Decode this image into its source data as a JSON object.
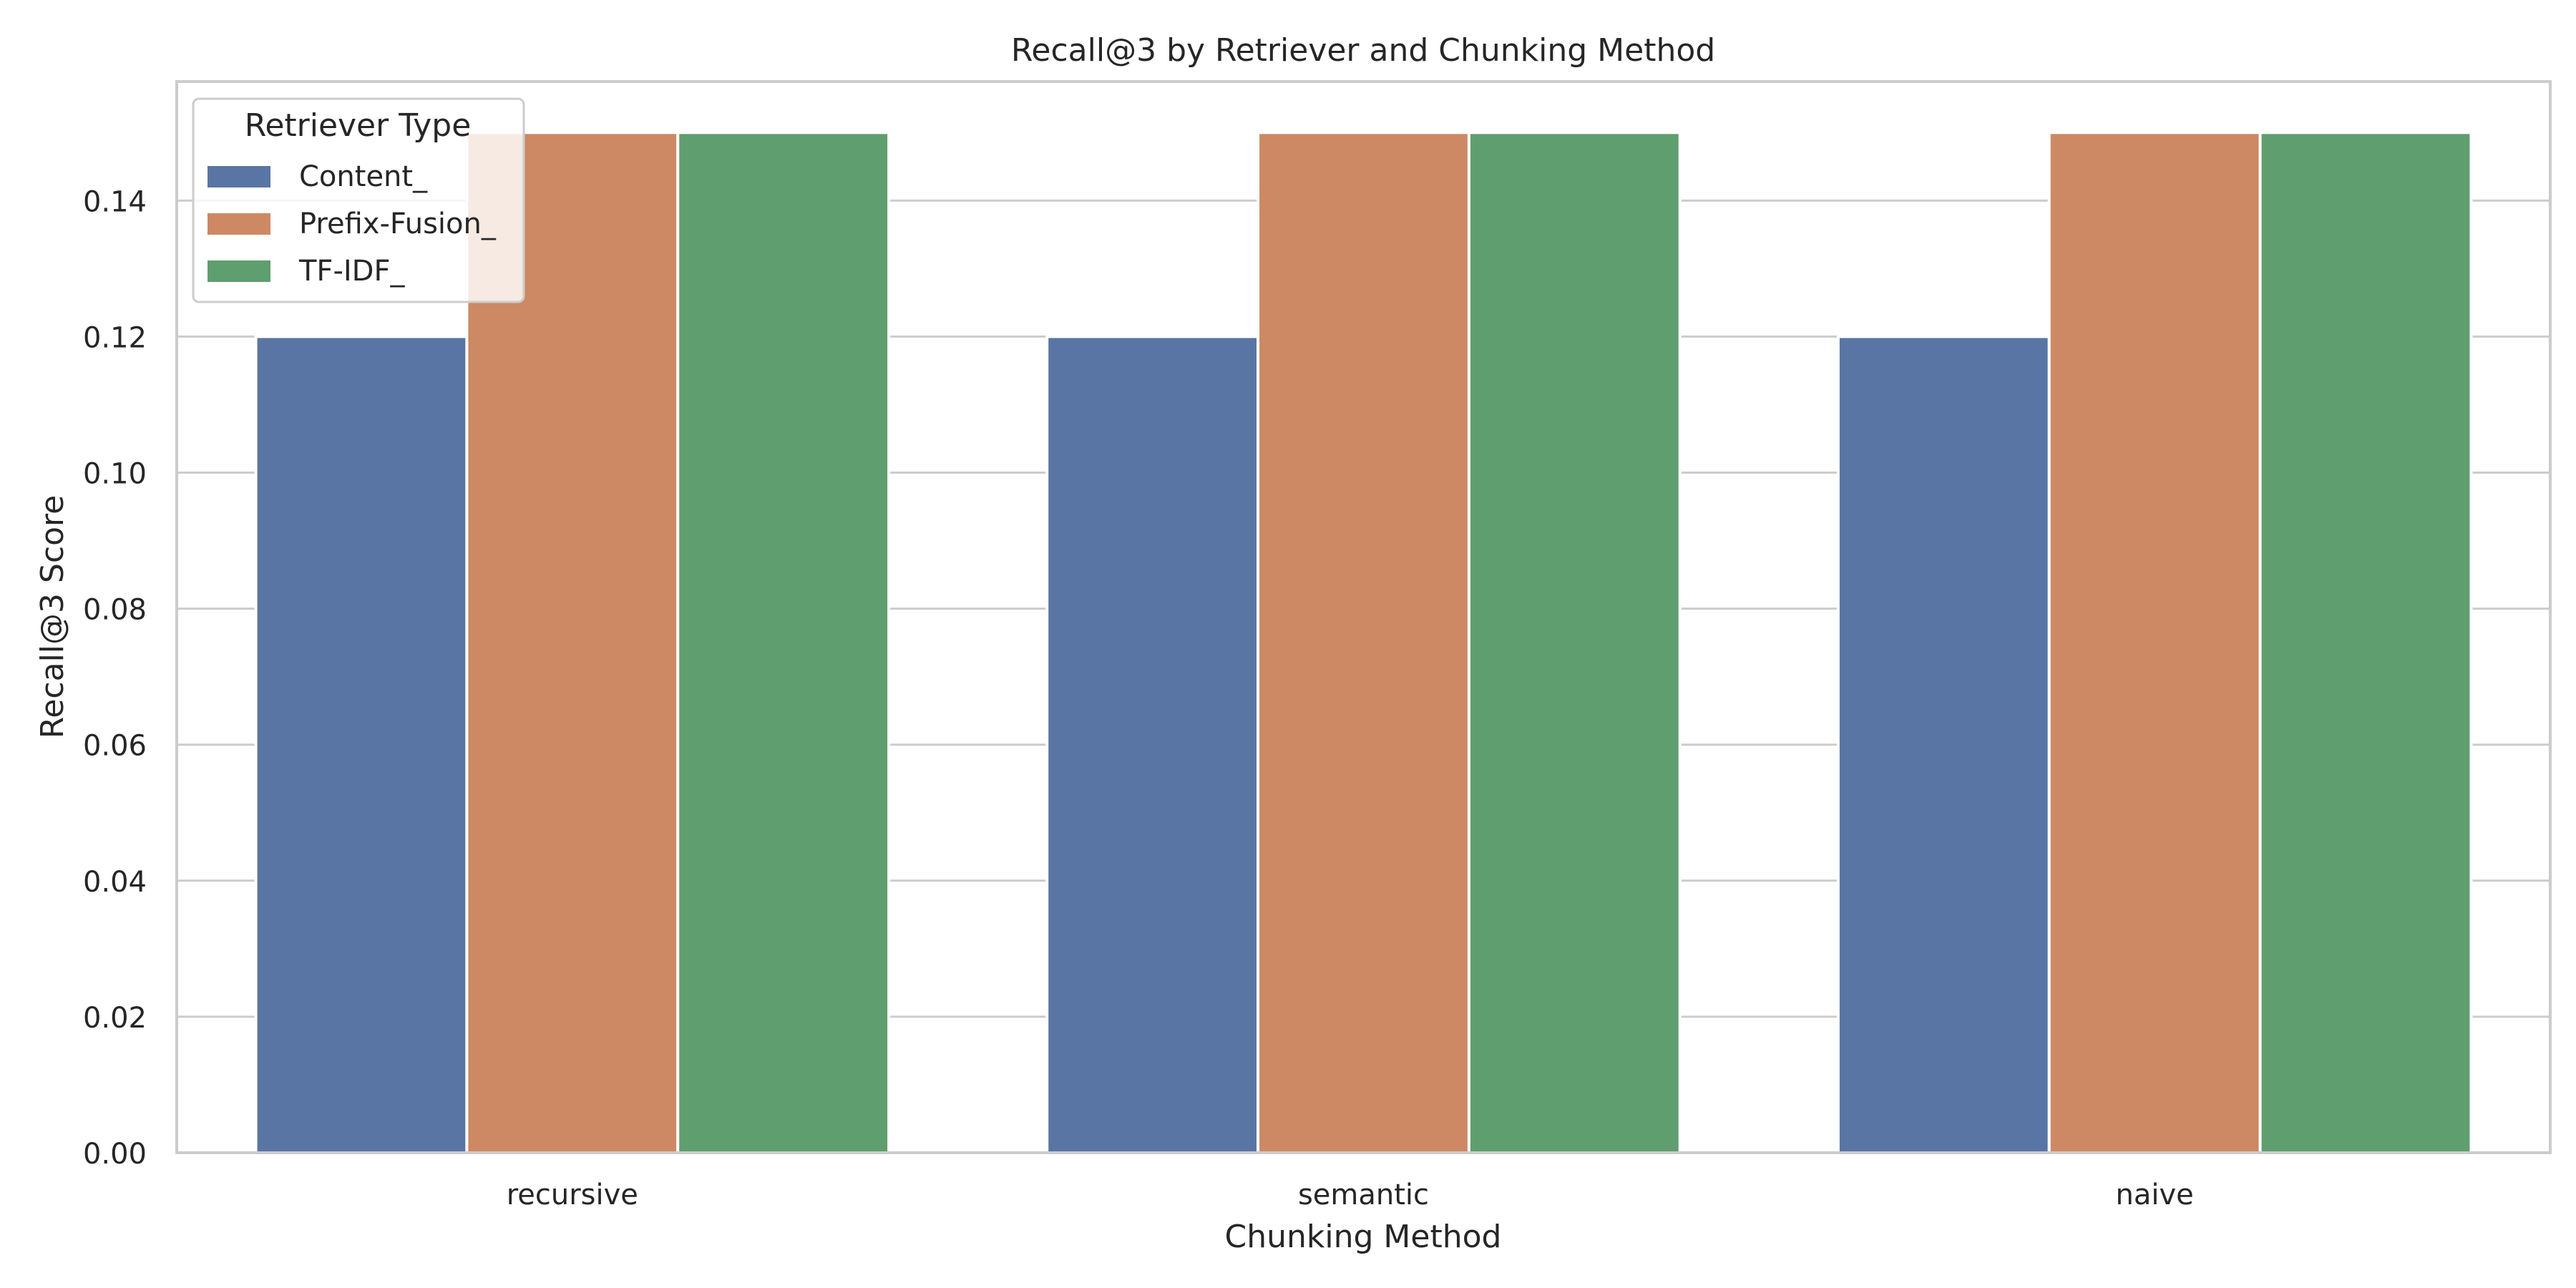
{
  "chart_data": {
    "type": "bar",
    "title": "Recall@3 by Retriever and Chunking Method",
    "xlabel": "Chunking Method",
    "ylabel": "Recall@3 Score",
    "categories": [
      "recursive",
      "semantic",
      "naive"
    ],
    "ylim": [
      0,
      0.1575
    ],
    "yticks": [
      0.0,
      0.02,
      0.04,
      0.06,
      0.08,
      0.1,
      0.12,
      0.14
    ],
    "ytick_labels": [
      "0.00",
      "0.02",
      "0.04",
      "0.06",
      "0.08",
      "0.10",
      "0.12",
      "0.14"
    ],
    "grid": "horizontal",
    "legend": {
      "title": "Retriever Type",
      "placement": "top-left"
    },
    "series": [
      {
        "name": "Content_",
        "color": "#5975a4",
        "values": [
          0.12,
          0.12,
          0.12
        ]
      },
      {
        "name": "Prefix-Fusion_",
        "color": "#cc8963",
        "values": [
          0.15,
          0.15,
          0.15
        ]
      },
      {
        "name": "TF-IDF_",
        "color": "#5f9e6e",
        "values": [
          0.15,
          0.15,
          0.15
        ]
      }
    ]
  }
}
